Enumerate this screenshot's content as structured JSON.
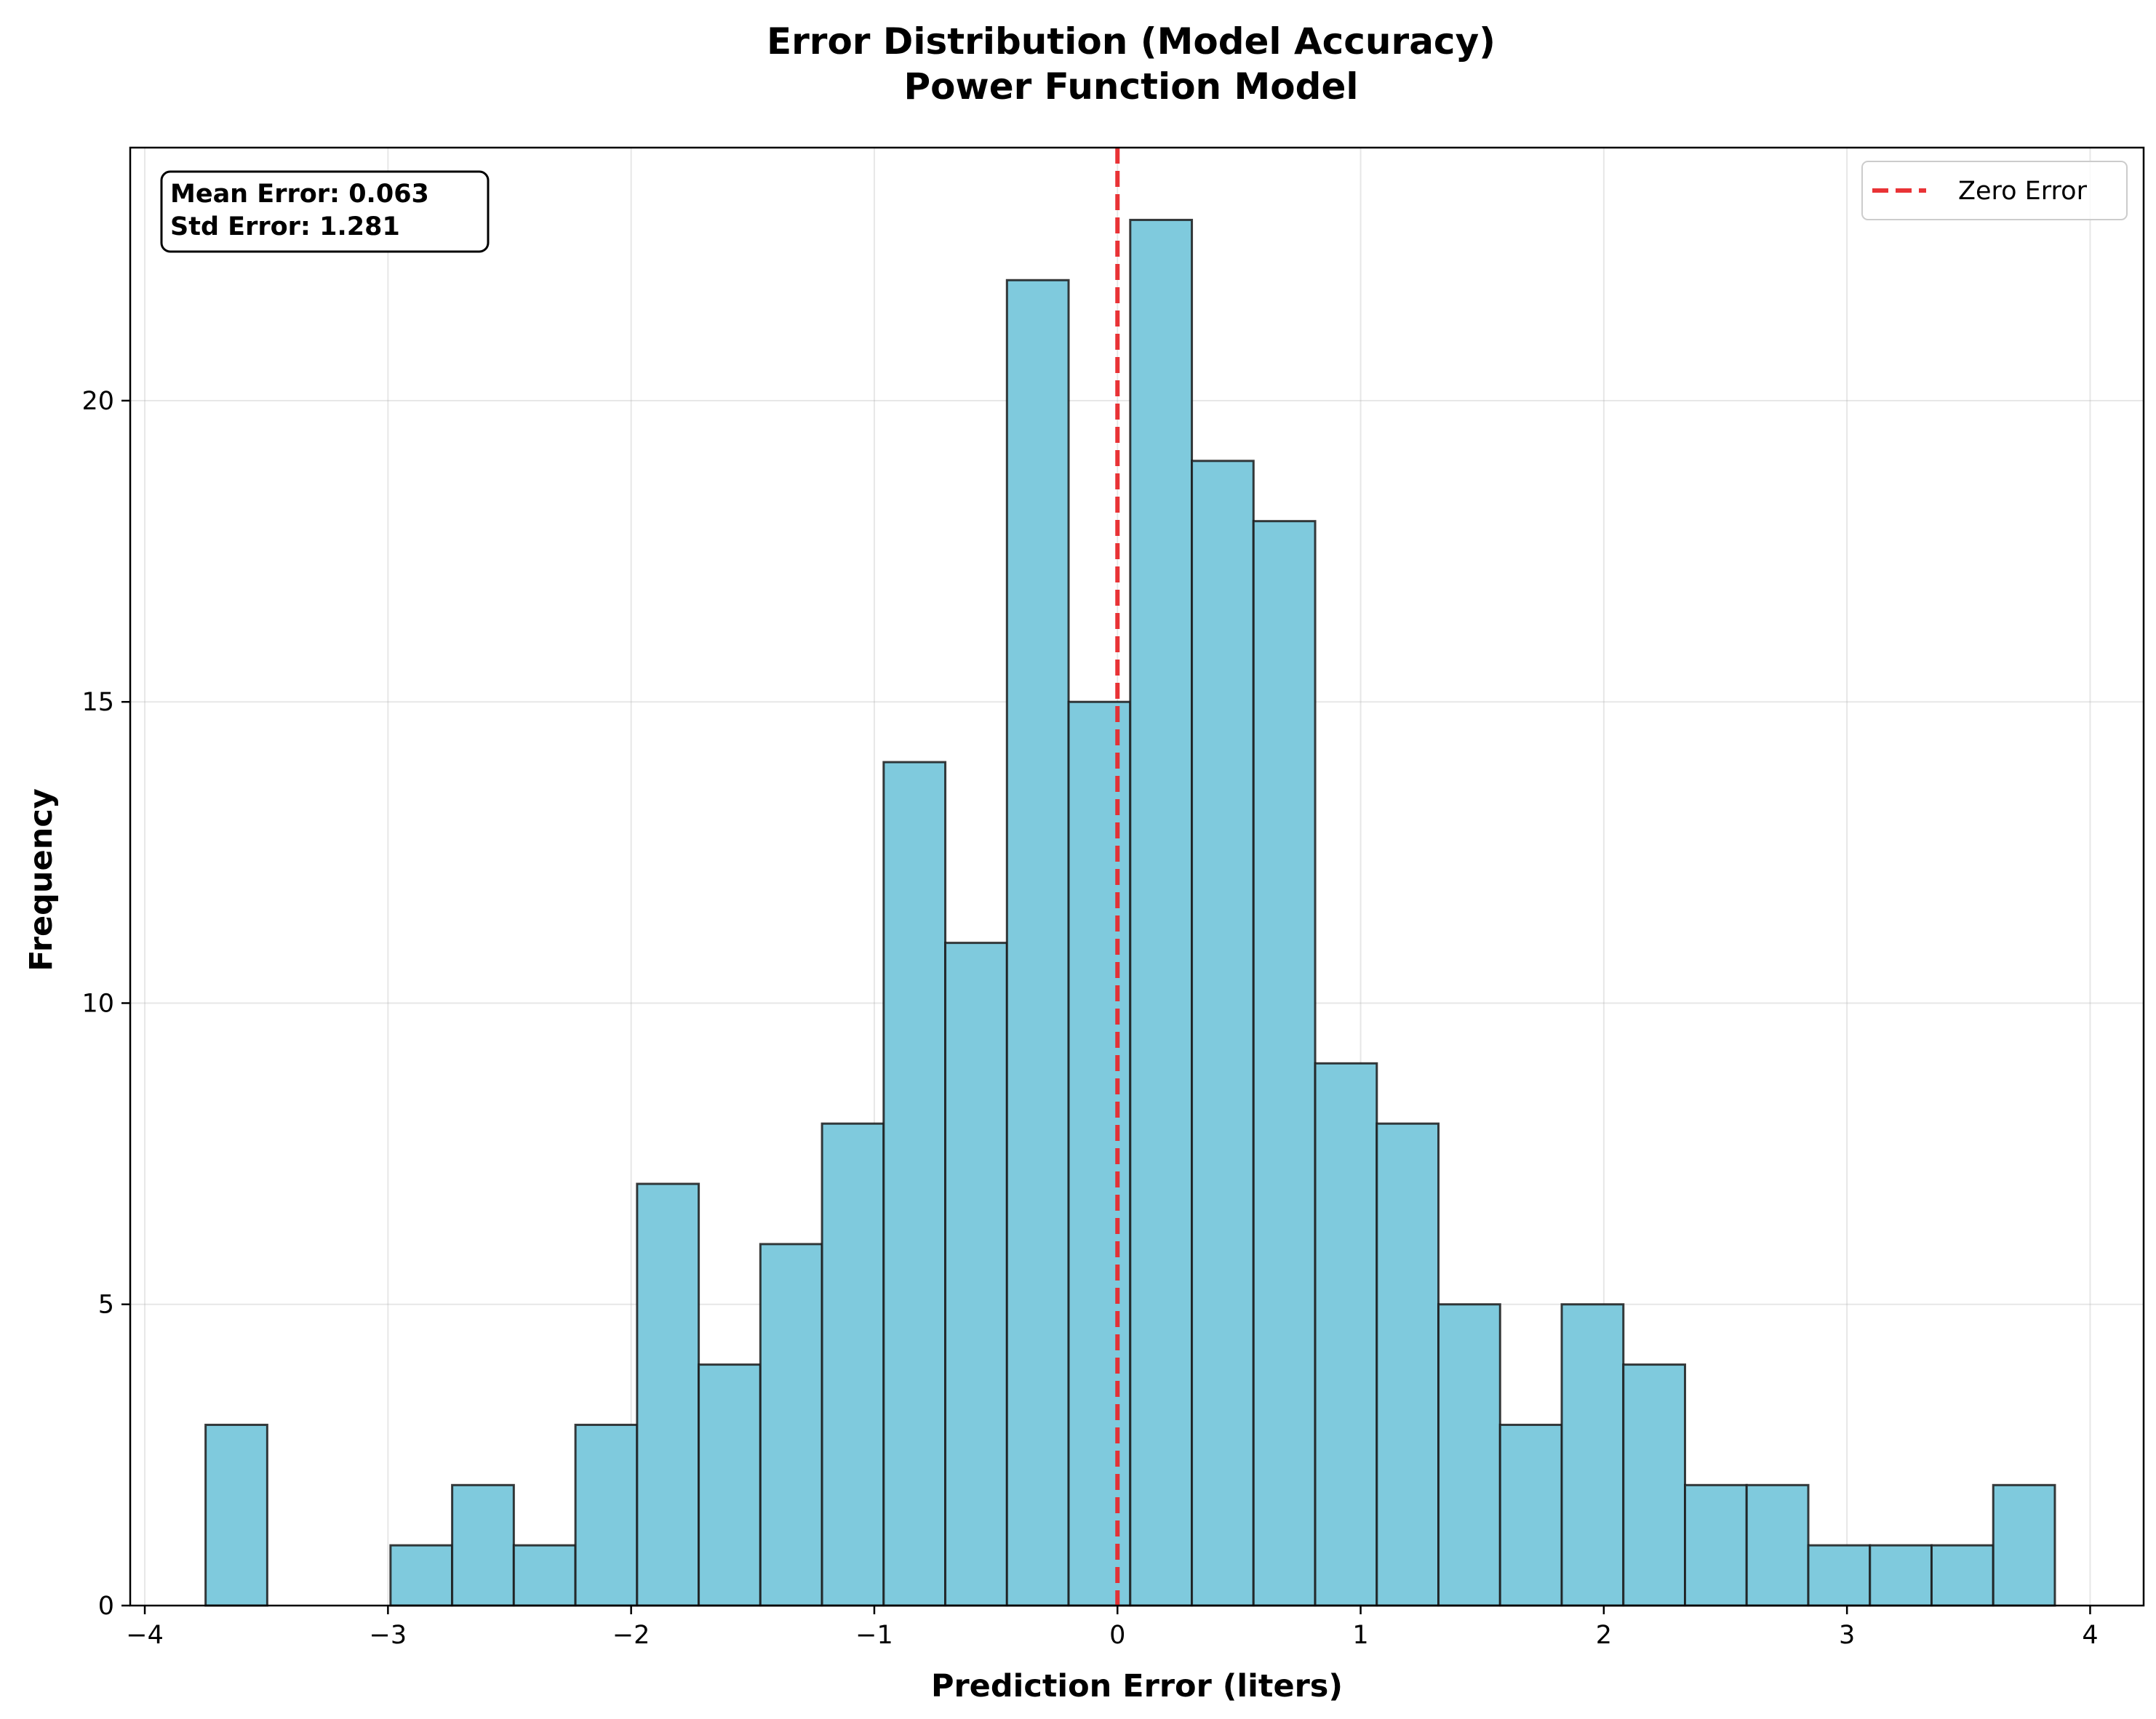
{
  "chart_data": {
    "type": "bar",
    "subtype": "histogram",
    "title": "Error Distribution (Model Accuracy)",
    "subtitle": "Power Function Model",
    "xlabel": "Prediction Error (liters)",
    "ylabel": "Frequency",
    "xlim": [
      -4.06,
      4.22
    ],
    "ylim": [
      0,
      24.2
    ],
    "x_ticks": [
      -4,
      -3,
      -2,
      -1,
      0,
      1,
      2,
      3,
      4
    ],
    "x_tick_labels": [
      "−4",
      "−3",
      "−2",
      "−1",
      "0",
      "1",
      "2",
      "3",
      "4"
    ],
    "y_ticks": [
      0,
      5,
      10,
      15,
      20
    ],
    "y_tick_labels": [
      "0",
      "5",
      "10",
      "15",
      "20"
    ],
    "bin_start": -3.75,
    "bin_width": 0.2535,
    "values": [
      3,
      0,
      0,
      1,
      2,
      1,
      3,
      7,
      4,
      6,
      8,
      14,
      11,
      22,
      15,
      23,
      19,
      18,
      9,
      8,
      5,
      3,
      5,
      4,
      2,
      2,
      1,
      1,
      1,
      2
    ],
    "bar_color": "#7fcadd",
    "edge_color": "#1a1a1a",
    "reference_line": {
      "x": 0,
      "label": "Zero Error",
      "color": "#e8282b",
      "style": "dashed"
    },
    "legend": {
      "position": "top-right",
      "entries": [
        "Zero Error"
      ]
    },
    "annotation": {
      "position": "top-left",
      "lines": [
        "Mean Error: 0.063",
        "Std Error: 1.281"
      ]
    },
    "grid": true
  }
}
